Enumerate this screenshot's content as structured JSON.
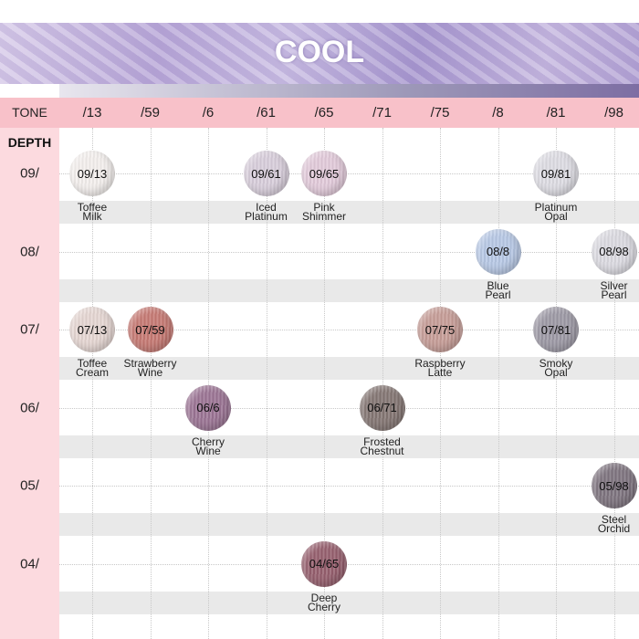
{
  "title": "COOL",
  "tone_label": "TONE",
  "depth_label": "DEPTH",
  "tones": [
    "/13",
    "/59",
    "/6",
    "/61",
    "/65",
    "/71",
    "/75",
    "/8",
    "/81",
    "/98"
  ],
  "depths": [
    "09/",
    "08/",
    "07/",
    "06/",
    "05/",
    "04/"
  ],
  "shades": [
    {
      "code": "09/13",
      "name": [
        "Toffee",
        "Milk"
      ],
      "depth": 0,
      "tone": 0,
      "color": "#f4f0ee"
    },
    {
      "code": "09/61",
      "name": [
        "Iced",
        "Platinum"
      ],
      "depth": 0,
      "tone": 3,
      "color": "#d9cfdc"
    },
    {
      "code": "09/65",
      "name": [
        "Pink",
        "Shimmer"
      ],
      "depth": 0,
      "tone": 4,
      "color": "#e3cbdb"
    },
    {
      "code": "09/81",
      "name": [
        "Platinum",
        "Opal"
      ],
      "depth": 0,
      "tone": 8,
      "color": "#dedde4"
    },
    {
      "code": "08/8",
      "name": [
        "Blue",
        "Pearl"
      ],
      "depth": 1,
      "tone": 7,
      "color": "#b8c9e6"
    },
    {
      "code": "08/98",
      "name": [
        "Silver",
        "Pearl"
      ],
      "depth": 1,
      "tone": 9,
      "color": "#dcdbe2"
    },
    {
      "code": "07/13",
      "name": [
        "Toffee",
        "Cream"
      ],
      "depth": 2,
      "tone": 0,
      "color": "#e6d7d3"
    },
    {
      "code": "07/59",
      "name": [
        "Strawberry",
        "Wine"
      ],
      "depth": 2,
      "tone": 1,
      "color": "#c77a74"
    },
    {
      "code": "07/75",
      "name": [
        "Raspberry",
        "Latte"
      ],
      "depth": 2,
      "tone": 6,
      "color": "#c79e98"
    },
    {
      "code": "07/81",
      "name": [
        "Smoky",
        "Opal"
      ],
      "depth": 2,
      "tone": 8,
      "color": "#9e9aa6"
    },
    {
      "code": "06/6",
      "name": [
        "Cherry",
        "Wine"
      ],
      "depth": 3,
      "tone": 2,
      "color": "#9c7595"
    },
    {
      "code": "06/71",
      "name": [
        "Frosted",
        "Chestnut"
      ],
      "depth": 3,
      "tone": 5,
      "color": "#857774"
    },
    {
      "code": "05/98",
      "name": [
        "Steel",
        "Orchid"
      ],
      "depth": 4,
      "tone": 9,
      "color": "#7f7580"
    },
    {
      "code": "04/65",
      "name": [
        "Deep",
        "Cherry"
      ],
      "depth": 5,
      "tone": 4,
      "color": "#97606f"
    }
  ]
}
